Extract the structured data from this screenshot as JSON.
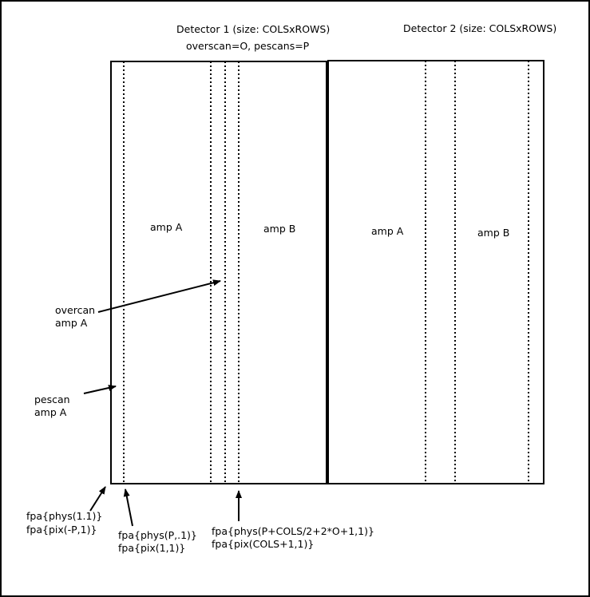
{
  "detector1": {
    "title": "Detector 1 (size: COLSxROWS)",
    "subtitle": "overscan=O, pescans=P",
    "amp_a": "amp A",
    "amp_b": "amp B"
  },
  "detector2": {
    "title": "Detector 2 (size: COLSxROWS)",
    "amp_a": "amp A",
    "amp_b": "amp B"
  },
  "annotations": {
    "overscan_line1": "overcan",
    "overscan_line2": "amp A",
    "prescan_line1": "pescan",
    "prescan_line2": "amp A"
  },
  "coords": {
    "corner_phys": "fpa{phys(1.1)}",
    "corner_pix": "fpa{pix(-P,1)}",
    "amp_a_phys": "fpa{phys(P,.1)}",
    "amp_a_pix": "fpa{pix(1,1)}",
    "amp_b_phys": "fpa{phys(P+COLS/2+2*O+1,1)}",
    "amp_b_pix": "fpa{pix(COLS+1,1)}"
  }
}
